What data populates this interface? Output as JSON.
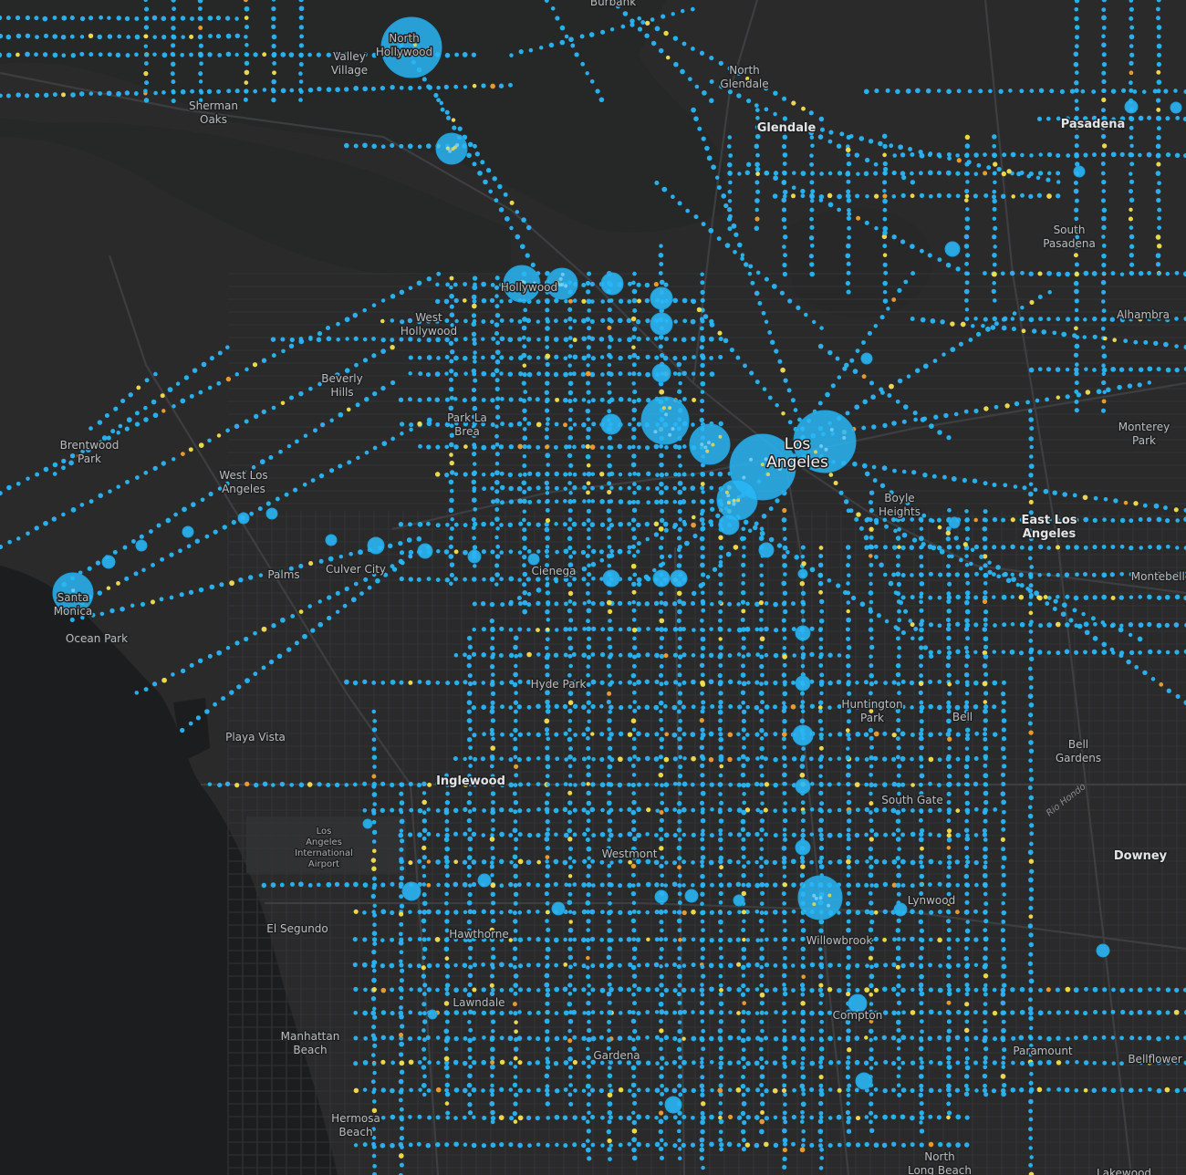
{
  "map": {
    "theme": "dark-gray-canvas",
    "colors": {
      "land": "#2a2a2b",
      "hills": "#252626",
      "ocean": "#1b1d1f",
      "major_road": "#3d3e40",
      "minor_road": "#333436",
      "stop_point": "#29b6f6",
      "cluster": "#29b6f6",
      "highlight_point": "#f4e04d",
      "alert_point": "#f0a030"
    },
    "places": [
      {
        "name": "Burbank",
        "class": "normal"
      },
      {
        "name": "North Hollywood",
        "class": "normal"
      },
      {
        "name": "Valley Village",
        "class": "normal"
      },
      {
        "name": "Sherman Oaks",
        "class": "normal"
      },
      {
        "name": "North Glendale",
        "class": "normal"
      },
      {
        "name": "Glendale",
        "class": "major"
      },
      {
        "name": "Pasadena",
        "class": "major"
      },
      {
        "name": "South Pasadena",
        "class": "normal"
      },
      {
        "name": "Alhambra",
        "class": "normal"
      },
      {
        "name": "Hollywood",
        "class": "normal"
      },
      {
        "name": "West Hollywood",
        "class": "normal"
      },
      {
        "name": "Beverly Hills",
        "class": "normal"
      },
      {
        "name": "Park La Brea",
        "class": "normal"
      },
      {
        "name": "Brentwood Park",
        "class": "normal"
      },
      {
        "name": "West Los Angeles",
        "class": "normal"
      },
      {
        "name": "Los Angeles",
        "class": "metro"
      },
      {
        "name": "Monterey Park",
        "class": "normal"
      },
      {
        "name": "Boyle Heights",
        "class": "normal"
      },
      {
        "name": "East Los Angeles",
        "class": "major"
      },
      {
        "name": "Santa Monica",
        "class": "normal"
      },
      {
        "name": "Ocean Park",
        "class": "normal"
      },
      {
        "name": "Palms",
        "class": "normal"
      },
      {
        "name": "Culver City",
        "class": "normal"
      },
      {
        "name": "Cienega",
        "class": "normal"
      },
      {
        "name": "Montebello",
        "class": "normal"
      },
      {
        "name": "Hyde Park",
        "class": "normal"
      },
      {
        "name": "Huntington Park",
        "class": "normal"
      },
      {
        "name": "Bell",
        "class": "normal"
      },
      {
        "name": "Bell Gardens",
        "class": "normal"
      },
      {
        "name": "Playa Vista",
        "class": "normal"
      },
      {
        "name": "Inglewood",
        "class": "major"
      },
      {
        "name": "South Gate",
        "class": "normal"
      },
      {
        "name": "Downey",
        "class": "major"
      },
      {
        "name": "Westmont",
        "class": "normal"
      },
      {
        "name": "Los Angeles International Airport",
        "class": "small"
      },
      {
        "name": "Lynwood",
        "class": "normal"
      },
      {
        "name": "El Segundo",
        "class": "normal"
      },
      {
        "name": "Hawthorne",
        "class": "normal"
      },
      {
        "name": "Willowbrook",
        "class": "normal"
      },
      {
        "name": "Lawndale",
        "class": "normal"
      },
      {
        "name": "Compton",
        "class": "normal"
      },
      {
        "name": "Manhattan Beach",
        "class": "normal"
      },
      {
        "name": "Gardena",
        "class": "normal"
      },
      {
        "name": "Paramount",
        "class": "normal"
      },
      {
        "name": "Bellflower",
        "class": "normal"
      },
      {
        "name": "Hermosa Beach",
        "class": "normal"
      },
      {
        "name": "North Long Beach",
        "class": "normal"
      },
      {
        "name": "Lakewood",
        "class": "normal"
      }
    ],
    "water_labels": [
      "Rio Hondo"
    ]
  }
}
